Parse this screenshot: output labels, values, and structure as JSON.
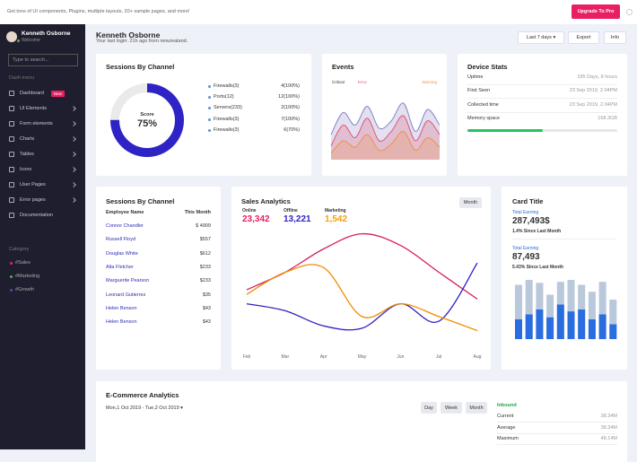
{
  "topbar": {
    "promo": "Get tons of UI components, Plugins, multiple layouts, 20+ sample pages, and more!",
    "button": "Upgrade To Pro"
  },
  "sidebar": {
    "user": {
      "name": "Kenneth Osborne",
      "status": "Welcome"
    },
    "search_placeholder": "Type to search...",
    "section": "Dash menu",
    "menu": [
      {
        "label": "Dashboard",
        "badge": "New"
      },
      {
        "label": "UI Elements"
      },
      {
        "label": "Form elements"
      },
      {
        "label": "Charts"
      },
      {
        "label": "Tables"
      },
      {
        "label": "Icons"
      },
      {
        "label": "User Pages"
      },
      {
        "label": "Error pages"
      },
      {
        "label": "Documentation"
      }
    ],
    "category_title": "Category",
    "categories": [
      {
        "label": "#Sales",
        "color": "#e91e63"
      },
      {
        "label": "#Marketing",
        "color": "#4caf50"
      },
      {
        "label": "#Growth",
        "color": "#3f51b5"
      }
    ]
  },
  "header": {
    "name": "Kenneth Osborne",
    "subtitle": "Your last login: 21h ago from newzealand.",
    "buttons": [
      "Last 7 days",
      "Export",
      "Info"
    ]
  },
  "sessions_by_channel": {
    "title": "Sessions By Channel",
    "score_label": "Score",
    "score": 75,
    "score_value_label": "75%",
    "color": "#2e23c4",
    "items": [
      {
        "label": "Firewalls(3)",
        "value": "4(100%)"
      },
      {
        "label": "Ports(12)",
        "value": "12(100%)"
      },
      {
        "label": "Servers(233)",
        "value": "2(100%)"
      },
      {
        "label": "Firewalls(3)",
        "value": "7(100%)"
      },
      {
        "label": "Firewalls(3)",
        "value": "6(70%)"
      }
    ]
  },
  "events": {
    "title": "Events",
    "ylim": [
      0,
      100
    ],
    "series": [
      {
        "name": "Critical",
        "color": "#8a84c8",
        "values": [
          40,
          75,
          55,
          85,
          50,
          62,
          90,
          45,
          80,
          55
        ]
      },
      {
        "name": "Error",
        "color": "#e05a78",
        "values": [
          22,
          55,
          35,
          66,
          30,
          45,
          70,
          30,
          62,
          40
        ]
      },
      {
        "name": "Warning",
        "color": "#f0914a",
        "values": [
          10,
          30,
          20,
          40,
          15,
          25,
          45,
          15,
          35,
          20
        ]
      }
    ]
  },
  "device_stats": {
    "title": "Device Stats",
    "rows": [
      {
        "label": "Uptime",
        "value": "195 Days, 8 hours"
      },
      {
        "label": "First Seen",
        "value": "23 Sep 2019, 2.04PM"
      },
      {
        "label": "Collected time",
        "value": "23 Sep 2019, 2.04PM"
      },
      {
        "label": "Memory space",
        "value": "168.3GB"
      }
    ],
    "memory_progress": 50,
    "progress_color": "#22c55e"
  },
  "sessions_table": {
    "title": "Sessions By Channel",
    "headers": [
      "Employee Name",
      "This Month"
    ],
    "rows": [
      [
        "Connor Chandler",
        "$ 4909"
      ],
      [
        "Russell Floyd",
        "$557"
      ],
      [
        "Douglas White",
        "$612"
      ],
      [
        "Alta Fletcher",
        "$233"
      ],
      [
        "Marguerite Pearson",
        "$233"
      ],
      [
        "Leonard Gutierrez",
        "$35"
      ],
      [
        "Helen Benson",
        "$43"
      ],
      [
        "Helen Benson",
        "$43"
      ]
    ]
  },
  "sales_analytics": {
    "title": "Sales Analytics",
    "button": "Month",
    "stats": [
      {
        "label": "Online",
        "value": "23,342",
        "color": "#e91e63"
      },
      {
        "label": "Offline",
        "value": "13,221",
        "color": "#2e23c4"
      },
      {
        "label": "Marketing",
        "value": "1,542",
        "color": "#f59e0b"
      }
    ],
    "categories": [
      "Feb",
      "Mar",
      "Apr",
      "May",
      "Jun",
      "Jul",
      "Aug"
    ],
    "ylim": [
      0,
      100
    ],
    "series": [
      {
        "name": "Online",
        "color": "#d81b60",
        "values": [
          50,
          65,
          85,
          98,
          88,
          65,
          42
        ]
      },
      {
        "name": "Offline",
        "color": "#2e23c4",
        "values": [
          38,
          32,
          19,
          17,
          38,
          23,
          73
        ]
      },
      {
        "name": "Marketing",
        "color": "#f08c00",
        "values": [
          46,
          65,
          69,
          27,
          38,
          27,
          15
        ]
      }
    ]
  },
  "card": {
    "title": "Card Title",
    "items": [
      {
        "label": "Total Earning",
        "value": "287,493$",
        "change": "1.4% Since Last Month"
      },
      {
        "label": "Total Earning",
        "value": "87,493",
        "change": "5.43% Since Last Month"
      }
    ],
    "ylim": [
      0,
      60
    ],
    "series": [
      {
        "color": "#b9c8da",
        "values": [
          55,
          60,
          57,
          45,
          58,
          60,
          55,
          48,
          58,
          40
        ]
      },
      {
        "color": "#2a6de0",
        "values": [
          20,
          25,
          30,
          22,
          35,
          28,
          30,
          20,
          25,
          15
        ]
      }
    ]
  },
  "ecommerce": {
    "title": "E-Commerce Analytics",
    "date": "Mon,1 Oct 2019 - Tue,2 Oct 2019",
    "buttons": [
      "Day",
      "Week",
      "Month"
    ],
    "inbound_title": "Inbound",
    "rows": [
      {
        "label": "Current",
        "value": "38.34M"
      },
      {
        "label": "Average",
        "value": "38.34M"
      },
      {
        "label": "Maximum",
        "value": "48.14M"
      }
    ]
  }
}
